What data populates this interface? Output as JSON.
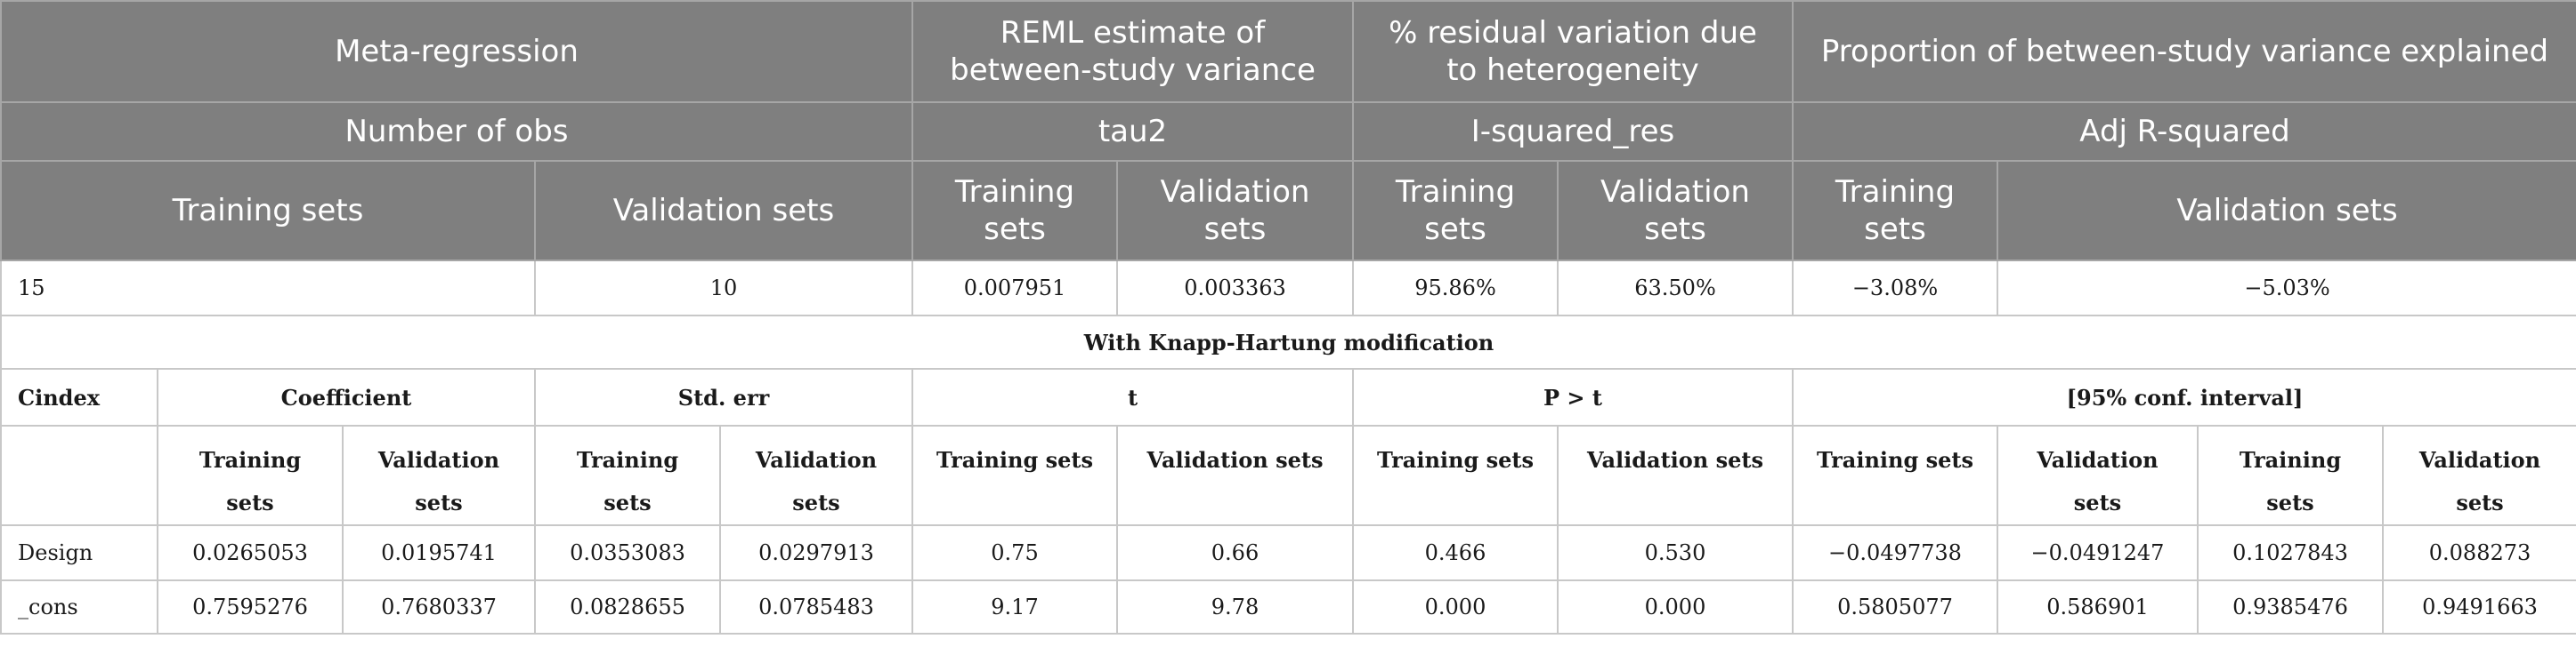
{
  "header": {
    "row1": {
      "meta_regression": "Meta-regression",
      "reml": "REML estimate of between-study variance",
      "residual": "% residual variation due to heterogeneity",
      "proportion": "Proportion of between-study variance explained"
    },
    "row2": {
      "num_obs": "Number of obs",
      "tau2": "tau2",
      "i_squared": "I-squared_res",
      "adj_r2": "Adj R-squared"
    },
    "row3": {
      "training": "Training sets",
      "validation": "Validation sets"
    }
  },
  "summary": {
    "num_obs_training": "15",
    "num_obs_validation": "10",
    "tau2_training": "0.007951",
    "tau2_validation": "0.003363",
    "i2_training": "95.86%",
    "i2_validation": "63.50%",
    "adjr2_training": "−3.08%",
    "adjr2_validation": "−5.03%"
  },
  "knapp_title": "With Knapp-Hartung modification",
  "coef_header": {
    "cindex": "Cindex",
    "coefficient": "Coefficient",
    "std_err": "Std. err",
    "t": "t",
    "p": "P > t",
    "ci": "[95% conf. interval]"
  },
  "subheader": {
    "training": "Training sets",
    "validation": "Validation sets"
  },
  "rows": [
    {
      "label": "Design",
      "values": [
        "0.0265053",
        "0.0195741",
        "0.0353083",
        "0.0297913",
        "0.75",
        "0.66",
        "0.466",
        "0.530",
        "−0.0497738",
        "−0.0491247",
        "0.1027843",
        "0.088273"
      ]
    },
    {
      "label": "_cons",
      "values": [
        "0.7595276",
        "0.7680337",
        "0.0828655",
        "0.0785483",
        "9.17",
        "9.78",
        "0.000",
        "0.000",
        "0.5805077",
        "0.586901",
        "0.9385476",
        "0.9491663"
      ]
    }
  ]
}
